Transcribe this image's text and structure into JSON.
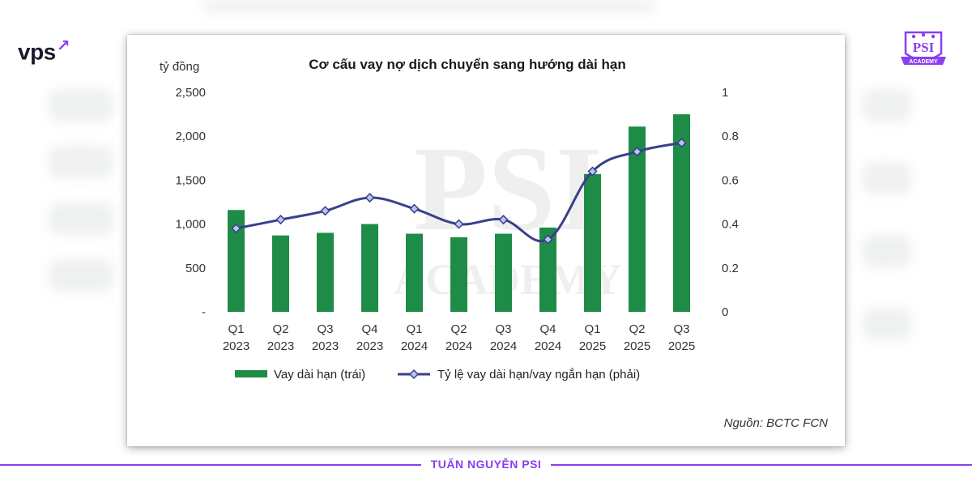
{
  "brand": {
    "name": "vps",
    "mark": "↗"
  },
  "psi_logo": {
    "title": "PSI",
    "subtitle": "ACADEMY"
  },
  "footer": {
    "text": "TUẤN NGUYỄN PSI"
  },
  "colors": {
    "bar": "#1e8c46",
    "line": "#3a3f8c",
    "marker_fill": "#b9c6ec",
    "accent": "#8a3ff0"
  },
  "chart_data": {
    "type": "bar",
    "title": "Cơ cấu vay nợ dịch chuyển sang hướng dài hạn",
    "ylabel_left": "tỷ đồng",
    "categories": [
      [
        "Q1",
        "2023"
      ],
      [
        "Q2",
        "2023"
      ],
      [
        "Q3",
        "2023"
      ],
      [
        "Q4",
        "2023"
      ],
      [
        "Q1",
        "2024"
      ],
      [
        "Q2",
        "2024"
      ],
      [
        "Q3",
        "2024"
      ],
      [
        "Q4",
        "2024"
      ],
      [
        "Q1",
        "2025"
      ],
      [
        "Q2",
        "2025"
      ],
      [
        "Q3",
        "2025"
      ]
    ],
    "series": [
      {
        "name": "Vay dài hạn (trái)",
        "type": "bar",
        "axis": "left",
        "values": [
          1160,
          870,
          900,
          1000,
          890,
          850,
          890,
          960,
          1570,
          2110,
          2250
        ]
      },
      {
        "name": "Tỷ lệ vay dài hạn/vay ngắn hạn (phải)",
        "type": "line",
        "axis": "right",
        "values": [
          0.38,
          0.42,
          0.46,
          0.52,
          0.47,
          0.4,
          0.42,
          0.33,
          0.64,
          0.73,
          0.77
        ]
      }
    ],
    "ylim_left": [
      0,
      2500
    ],
    "yticks_left": [
      "-",
      "500",
      "1,000",
      "1,500",
      "2,000",
      "2,500"
    ],
    "ylim_right": [
      0,
      1
    ],
    "yticks_right": [
      "0",
      "0.2",
      "0.4",
      "0.6",
      "0.8",
      "1"
    ],
    "source": "Nguồn: BCTC FCN",
    "legend_position": "bottom"
  }
}
